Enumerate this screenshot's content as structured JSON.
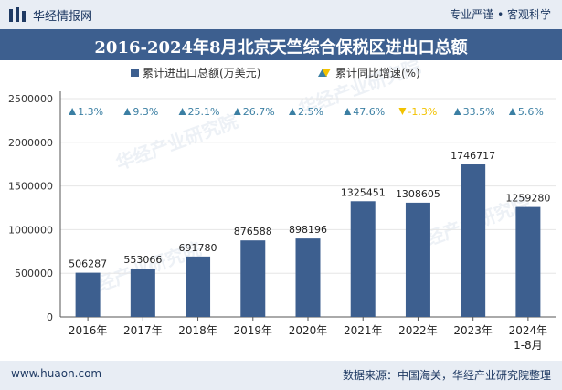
{
  "header": {
    "brand": "华经情报网",
    "slogan": "专业严谨 • 客观科学"
  },
  "footer": {
    "site": "www.huaon.com",
    "source": "数据来源：中国海关，华经产业研究院整理"
  },
  "watermark": "华经产业研究院",
  "chart_data": {
    "type": "bar",
    "title": "2016-2024年8月北京天竺综合保税区进出口总额",
    "categories": [
      "2016年",
      "2017年",
      "2018年",
      "2019年",
      "2020年",
      "2021年",
      "2022年",
      "2023年",
      "2024年\n1-8月"
    ],
    "series": [
      {
        "name": "累计进出口总额(万美元)",
        "values": [
          506287,
          553066,
          691780,
          876588,
          898196,
          1325451,
          1308605,
          1746717,
          1259280
        ]
      },
      {
        "name": "累计同比增速(%)",
        "values": [
          1.3,
          9.3,
          25.1,
          26.7,
          2.5,
          47.6,
          -1.3,
          33.5,
          5.6
        ]
      }
    ],
    "growth_labels": [
      "1.3%",
      "9.3%",
      "25.1%",
      "26.7%",
      "2.5%",
      "47.6%",
      "-1.3%",
      "33.5%",
      "5.6%"
    ],
    "ylim": [
      0,
      2500000
    ],
    "yticks": [
      0,
      500000,
      1000000,
      1500000,
      2000000,
      2500000
    ],
    "legend_position": "top-center",
    "colors": {
      "bar": "#3d5f8f",
      "up": "#3b7fa3",
      "down": "#f2c200",
      "title_bg": "#3d5f8f"
    }
  }
}
